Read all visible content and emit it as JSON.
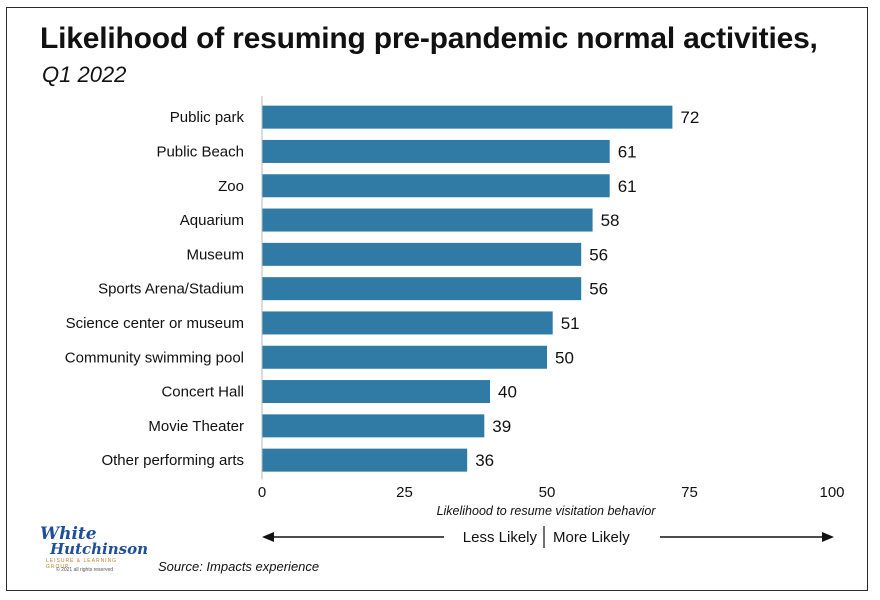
{
  "title": "Likelihood of resuming pre-pandemic normal activities,",
  "subtitle": "Q1 2022",
  "chart_data": {
    "type": "bar",
    "orientation": "horizontal",
    "categories": [
      "Public park",
      "Public Beach",
      "Zoo",
      "Aquarium",
      "Museum",
      "Sports Arena/Stadium",
      "Science center or museum",
      "Community swimming pool",
      "Concert Hall",
      "Movie Theater",
      "Other performing arts"
    ],
    "values": [
      72,
      61,
      61,
      58,
      56,
      56,
      51,
      50,
      40,
      39,
      36
    ],
    "xlim": [
      0,
      100
    ],
    "xticks": [
      0,
      25,
      50,
      75,
      100
    ],
    "xlabel": "Likelihood to resume visitation behavior",
    "bar_color": "#2f7ba6",
    "data_labels": true,
    "grid": false
  },
  "scale_arrows": {
    "left_label": "Less Likely",
    "right_label": "More Likely"
  },
  "logo": {
    "line1": "White",
    "line2": "Hutchinson",
    "line3": "LEISURE & LEARNING GROUP",
    "line4": "© 2021 all rights reserved"
  },
  "source": "Source: Impacts experience"
}
